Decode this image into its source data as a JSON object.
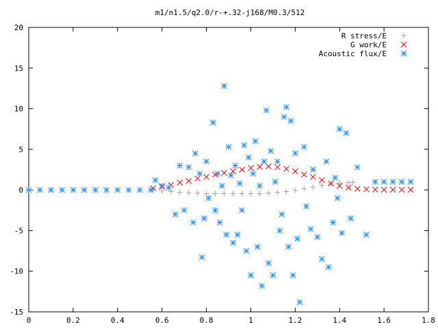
{
  "chart_data": {
    "type": "scatter",
    "title": "m1/n1.5/q2.0/r-+.32-j168/M0.3/512",
    "xlabel": "",
    "ylabel": "",
    "xlim": [
      0,
      1.8
    ],
    "ylim": [
      -15,
      20
    ],
    "x_ticks": [
      "0",
      "0.2",
      "0.4",
      "0.6",
      "0.8",
      "1",
      "1.2",
      "1.4",
      "1.6",
      "1.8"
    ],
    "y_ticks": [
      "20",
      "15",
      "10",
      "5",
      "0",
      "-5",
      "-10",
      "-15"
    ],
    "grid": false,
    "legend_position": "top-right",
    "series": [
      {
        "name": "R stress/E",
        "marker": "plus",
        "color": "#a0a0a0",
        "x": [
          0.56,
          0.6,
          0.64,
          0.68,
          0.72,
          0.76,
          0.8,
          0.84,
          0.88,
          0.92,
          0.96,
          1.0,
          1.04,
          1.08,
          1.12,
          1.16,
          1.2,
          1.24,
          1.28,
          1.32,
          1.36,
          1.4,
          1.44,
          1.46
        ],
        "y": [
          0.1,
          -0.1,
          -0.2,
          -0.3,
          -0.35,
          -0.4,
          -0.45,
          -0.45,
          -0.45,
          -0.45,
          -0.45,
          -0.45,
          -0.45,
          -0.4,
          -0.3,
          -0.2,
          -0.05,
          0.15,
          0.35,
          0.55,
          0.75,
          0.85,
          0.9,
          0.95
        ]
      },
      {
        "name": "G work/E",
        "marker": "cross",
        "color": "#ff0000",
        "x": [
          0.56,
          0.6,
          0.64,
          0.68,
          0.72,
          0.76,
          0.8,
          0.84,
          0.88,
          0.92,
          0.96,
          1.0,
          1.04,
          1.08,
          1.12,
          1.16,
          1.2,
          1.24,
          1.28,
          1.32,
          1.36,
          1.4,
          1.44,
          1.48,
          1.52,
          1.56,
          1.6,
          1.64,
          1.68,
          1.72
        ],
        "y": [
          0.2,
          0.4,
          0.6,
          0.9,
          1.1,
          1.4,
          1.6,
          1.9,
          2.1,
          2.3,
          2.5,
          2.7,
          2.85,
          2.9,
          2.8,
          2.6,
          2.3,
          1.9,
          1.6,
          1.2,
          0.8,
          0.5,
          0.3,
          0.15,
          0.08,
          0.05,
          0.03,
          0.03,
          0.03,
          0.03
        ]
      },
      {
        "name": "Acoustic flux/E",
        "marker": "star",
        "color": "#1f8fff",
        "x": [
          0.0,
          0.05,
          0.1,
          0.15,
          0.2,
          0.25,
          0.3,
          0.35,
          0.4,
          0.45,
          0.5,
          0.55,
          0.57,
          0.6,
          0.63,
          0.66,
          0.68,
          0.7,
          0.72,
          0.74,
          0.75,
          0.77,
          0.78,
          0.79,
          0.8,
          0.81,
          0.83,
          0.84,
          0.85,
          0.86,
          0.87,
          0.88,
          0.89,
          0.9,
          0.91,
          0.92,
          0.93,
          0.94,
          0.95,
          0.96,
          0.97,
          0.98,
          0.99,
          1.0,
          1.01,
          1.02,
          1.03,
          1.04,
          1.05,
          1.06,
          1.07,
          1.08,
          1.09,
          1.1,
          1.11,
          1.12,
          1.13,
          1.14,
          1.15,
          1.16,
          1.17,
          1.18,
          1.19,
          1.2,
          1.21,
          1.22,
          1.24,
          1.25,
          1.27,
          1.28,
          1.3,
          1.32,
          1.34,
          1.35,
          1.37,
          1.38,
          1.39,
          1.4,
          1.41,
          1.43,
          1.45,
          1.48,
          1.52,
          1.56,
          1.6,
          1.64,
          1.68,
          1.72
        ],
        "y": [
          0,
          0,
          0,
          0,
          0,
          0,
          0,
          0,
          0,
          0,
          0,
          0,
          1.2,
          0.5,
          0.3,
          -3.0,
          3.0,
          -2.5,
          2.8,
          -4.0,
          4.5,
          2.0,
          -8.3,
          -3.5,
          3.5,
          -1.0,
          8.3,
          -2.5,
          2.0,
          -4.0,
          0.5,
          12.8,
          -5.5,
          5.3,
          1.8,
          -6.5,
          3.0,
          -5.5,
          0.8,
          -2.5,
          5.5,
          -7.5,
          4.0,
          -10.5,
          2.0,
          6.0,
          -7.0,
          0.5,
          -11.8,
          3.5,
          9.8,
          -9.0,
          4.8,
          -10.5,
          1.0,
          3.5,
          -5.0,
          -3.0,
          9.0,
          10.2,
          -7.0,
          8.5,
          -10.5,
          4.5,
          -6.0,
          -13.8,
          5.3,
          -2.0,
          -4.8,
          2.5,
          -5.8,
          -8.5,
          3.5,
          -9.5,
          -4.0,
          1.5,
          -1.0,
          7.5,
          -5.3,
          7.0,
          -3.5,
          2.8,
          -5.5,
          1.0,
          1.0,
          1.0,
          1.0,
          1.0
        ]
      }
    ]
  }
}
